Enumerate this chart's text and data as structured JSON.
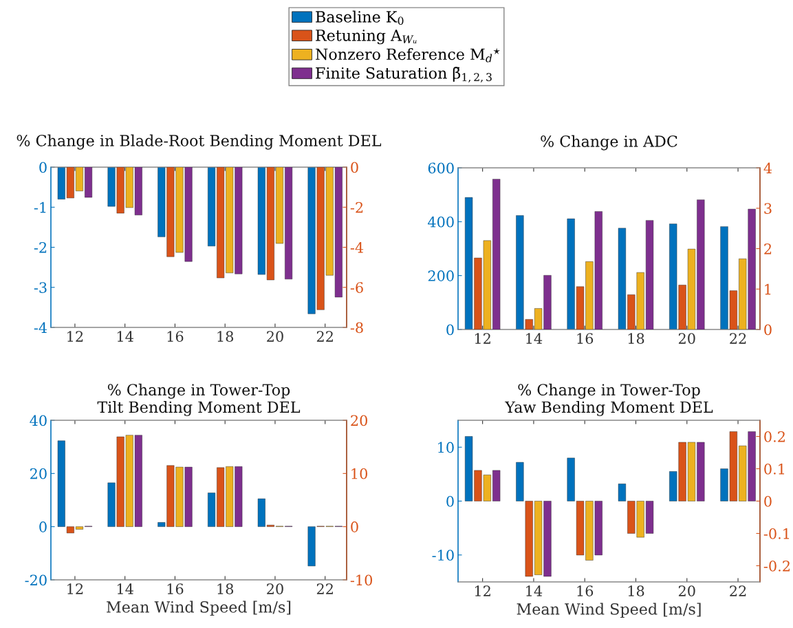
{
  "chart_data": [
    {
      "type": "bar",
      "title": "% Change in Blade-Root Bending Moment DEL",
      "categories": [
        "12",
        "14",
        "16",
        "18",
        "20",
        "22"
      ],
      "ylim": [
        -4,
        0
      ],
      "yticks": [
        -4,
        -3,
        -2,
        -1,
        0
      ],
      "y2lim": [
        -8,
        0
      ],
      "y2ticks": [
        -8,
        -6,
        -4,
        -2,
        0
      ],
      "legend": "top",
      "series": [
        {
          "name": "Baseline K$_{0}$",
          "color": "#0072bd",
          "values": [
            -0.8,
            -0.98,
            -1.74,
            -1.97,
            -2.68,
            -3.66
          ]
        },
        {
          "name": "Retuning A$_{Wᵤ}$",
          "color": "#d95319",
          "axis": "y2",
          "values": [
            -1.54,
            -2.3,
            -4.47,
            -5.53,
            -5.63,
            -7.12
          ]
        },
        {
          "name": "Nonzero Reference M$_{d}$$^{⋆}$",
          "color": "#edb120",
          "axis": "y2",
          "values": [
            -1.19,
            -2.02,
            -4.26,
            -5.28,
            -3.81,
            -5.4
          ]
        },
        {
          "name": "Finite Saturation β̄$_{1,2,3}$",
          "color": "#7e2f8e",
          "axis": "y2",
          "values": [
            -1.51,
            -2.39,
            -4.71,
            -5.33,
            -5.59,
            -6.49
          ]
        }
      ]
    },
    {
      "type": "bar",
      "title": "% Change in ADC",
      "categories": [
        "12",
        "14",
        "16",
        "18",
        "20",
        "22"
      ],
      "ylim": [
        0,
        600
      ],
      "yticks": [
        0,
        200,
        400,
        600
      ],
      "y2lim": [
        0,
        4
      ],
      "y2ticks": [
        0,
        1,
        2,
        3,
        4
      ],
      "series": [
        {
          "color": "#0072bd",
          "values": [
            490,
            423,
            411,
            376,
            392,
            382
          ]
        },
        {
          "color": "#d95319",
          "axis": "y2",
          "values": [
            1.77,
            0.25,
            1.06,
            0.86,
            1.1,
            0.96
          ]
        },
        {
          "color": "#edb120",
          "axis": "y2",
          "values": [
            2.2,
            0.52,
            1.68,
            1.41,
            1.99,
            1.75
          ]
        },
        {
          "color": "#7e2f8e",
          "axis": "y2",
          "values": [
            3.72,
            1.34,
            2.92,
            2.7,
            3.21,
            2.98
          ]
        }
      ]
    },
    {
      "type": "bar",
      "title": "% Change in Tower-Top\nTilt Bending Moment DEL",
      "xlabel": "Mean Wind Speed [m/s]",
      "categories": [
        "12",
        "14",
        "16",
        "18",
        "20",
        "22"
      ],
      "ylim": [
        -20,
        40
      ],
      "yticks": [
        -20,
        0,
        20,
        40
      ],
      "y2lim": [
        -10,
        20
      ],
      "y2ticks": [
        -10,
        0,
        10,
        20
      ],
      "series": [
        {
          "color": "#0072bd",
          "values": [
            32.3,
            16.5,
            1.6,
            12.7,
            10.5,
            -14.8
          ]
        },
        {
          "color": "#d95319",
          "axis": "y2",
          "values": [
            -1.2,
            16.9,
            11.5,
            11.1,
            0.3,
            0.1
          ]
        },
        {
          "color": "#edb120",
          "axis": "y2",
          "values": [
            -0.5,
            17.2,
            11.2,
            11.3,
            0.1,
            0.1
          ]
        },
        {
          "color": "#7e2f8e",
          "axis": "y2",
          "values": [
            0.1,
            17.2,
            11.2,
            11.3,
            0.1,
            0.1
          ]
        }
      ]
    },
    {
      "type": "bar",
      "title": "% Change in Tower-Top\nYaw Bending Moment DEL",
      "xlabel": "Mean Wind Speed [m/s]",
      "categories": [
        "12",
        "14",
        "16",
        "18",
        "20",
        "22"
      ],
      "ylim": [
        -15,
        15
      ],
      "yticks": [
        -10,
        0,
        10
      ],
      "y2lim": [
        -0.25,
        0.25
      ],
      "y2ticks": [
        -0.2,
        -0.1,
        0,
        0.1,
        0.2
      ],
      "series": [
        {
          "color": "#0072bd",
          "values": [
            12.0,
            7.2,
            8.0,
            3.2,
            5.5,
            6.0
          ]
        },
        {
          "color": "#d95319",
          "axis": "y2",
          "values": [
            0.095,
            -0.233,
            -0.167,
            -0.1,
            0.182,
            0.215
          ]
        },
        {
          "color": "#edb120",
          "axis": "y2",
          "values": [
            0.081,
            -0.228,
            -0.183,
            -0.112,
            0.182,
            0.171
          ]
        },
        {
          "color": "#7e2f8e",
          "axis": "y2",
          "values": [
            0.095,
            -0.233,
            -0.167,
            -0.1,
            0.182,
            0.215
          ]
        }
      ]
    }
  ]
}
